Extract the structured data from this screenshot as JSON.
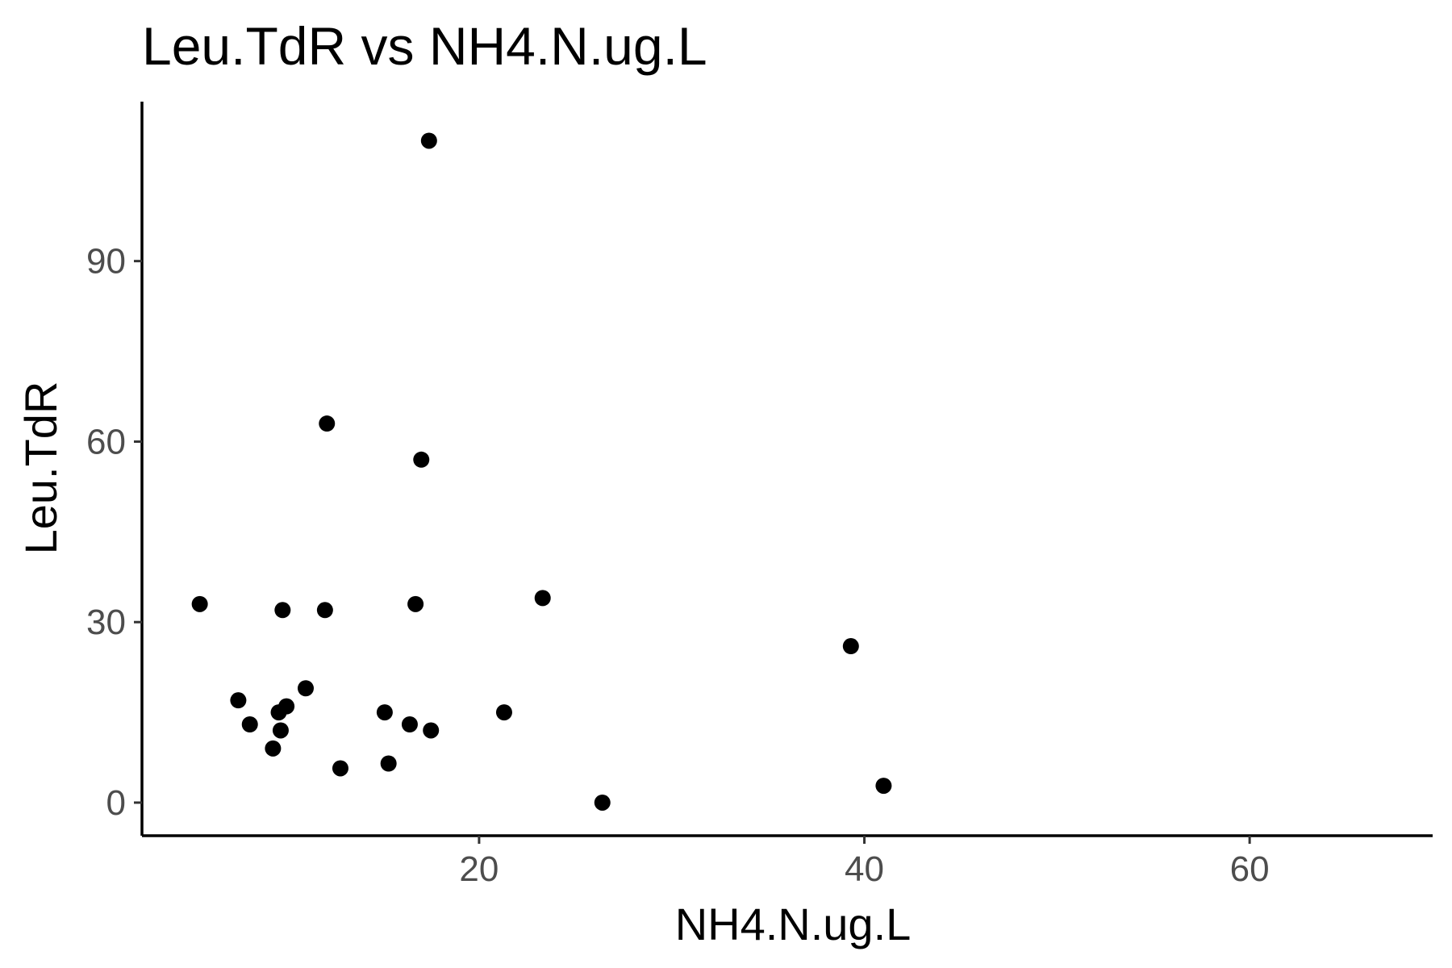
{
  "chart_data": {
    "type": "scatter",
    "title": "Leu.TdR vs NH4.N.ug.L",
    "xlabel": "NH4.N.ug.L",
    "ylabel": "Leu.TdR",
    "xlim": [
      2.5,
      69.5
    ],
    "ylim": [
      -5.5,
      116.5
    ],
    "x_ticks": [
      20,
      40,
      60
    ],
    "y_ticks": [
      0,
      30,
      60,
      90
    ],
    "x_tick_labels": [
      "20",
      "40",
      "60"
    ],
    "y_tick_labels": [
      "0",
      "30",
      "60",
      "90"
    ],
    "grid": false,
    "legend": "none",
    "point_color": "#000000",
    "points": [
      {
        "x": 5.5,
        "y": 33
      },
      {
        "x": 7.5,
        "y": 17
      },
      {
        "x": 8.1,
        "y": 13
      },
      {
        "x": 9.3,
        "y": 9
      },
      {
        "x": 9.6,
        "y": 15
      },
      {
        "x": 9.7,
        "y": 12
      },
      {
        "x": 9.8,
        "y": 32
      },
      {
        "x": 10.0,
        "y": 16
      },
      {
        "x": 11.0,
        "y": 19
      },
      {
        "x": 12.0,
        "y": 32
      },
      {
        "x": 12.1,
        "y": 63
      },
      {
        "x": 12.8,
        "y": 5.7
      },
      {
        "x": 15.1,
        "y": 15
      },
      {
        "x": 15.3,
        "y": 6.5
      },
      {
        "x": 16.4,
        "y": 13
      },
      {
        "x": 16.7,
        "y": 33
      },
      {
        "x": 17.0,
        "y": 57
      },
      {
        "x": 17.4,
        "y": 110
      },
      {
        "x": 17.5,
        "y": 12
      },
      {
        "x": 21.3,
        "y": 15
      },
      {
        "x": 23.3,
        "y": 34
      },
      {
        "x": 26.4,
        "y": 0
      },
      {
        "x": 39.3,
        "y": 26
      },
      {
        "x": 41.0,
        "y": 2.8
      }
    ]
  }
}
